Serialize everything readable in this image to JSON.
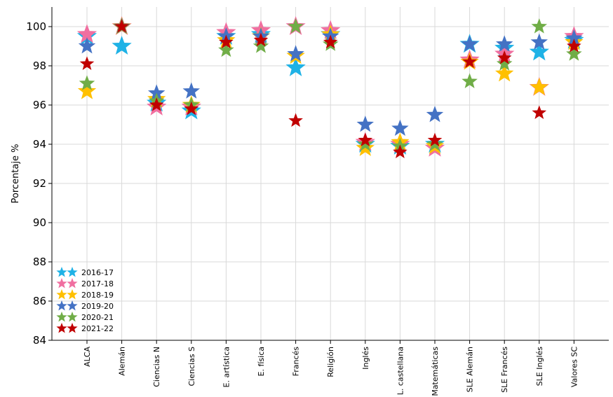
{
  "chart_data": {
    "type": "scatter",
    "ylabel": "Porcentaje %",
    "xlabel": "",
    "ylim": [
      84,
      101
    ],
    "yticks": [
      84,
      86,
      88,
      90,
      92,
      94,
      96,
      98,
      100
    ],
    "grid": true,
    "legend_position": "bottom-left",
    "categories": [
      "ALCA",
      "Alemán",
      "Ciencias N",
      "Ciencias S",
      "E. artística",
      "E. física",
      "Francés",
      "Religión",
      "Inglés",
      "L. castellana",
      "Matemáticas",
      "SLE Alemán",
      "SLE Francés",
      "SLE Inglés",
      "Valores SC"
    ],
    "series": [
      {
        "name": "2016-17",
        "color": "#1fb2e6",
        "values": [
          99.5,
          99.0,
          96.1,
          95.7,
          99.5,
          99.6,
          97.9,
          99.6,
          94.0,
          93.9,
          94.0,
          99.1,
          98.9,
          98.7,
          99.3
        ]
      },
      {
        "name": "2017-18",
        "color": "#f06fa0",
        "values": [
          99.6,
          100.0,
          95.9,
          95.9,
          99.7,
          99.8,
          100.0,
          99.8,
          94.1,
          94.0,
          93.8,
          98.3,
          98.6,
          96.9,
          99.5
        ]
      },
      {
        "name": "2018-19",
        "color": "#ffc000",
        "values": [
          96.7,
          100.0,
          96.3,
          96.0,
          99.3,
          99.5,
          98.5,
          99.6,
          93.8,
          94.1,
          93.9,
          98.2,
          97.6,
          96.9,
          99.2
        ]
      },
      {
        "name": "2019-20",
        "color": "#4472c4",
        "values": [
          99.0,
          100.0,
          96.6,
          96.7,
          99.5,
          99.5,
          98.6,
          99.5,
          95.0,
          94.8,
          95.5,
          99.1,
          99.1,
          99.2,
          99.4
        ]
      },
      {
        "name": "2020-21",
        "color": "#70ad47",
        "values": [
          97.1,
          100.0,
          96.2,
          96.0,
          98.8,
          99.0,
          100.0,
          99.1,
          94.0,
          93.9,
          94.0,
          97.2,
          98.1,
          100.0,
          98.6
        ]
      },
      {
        "name": "2021-22",
        "color": "#c00000",
        "values": [
          98.1,
          100.0,
          96.0,
          95.8,
          99.2,
          99.3,
          95.2,
          99.2,
          94.2,
          93.6,
          94.2,
          98.2,
          98.4,
          95.6,
          99.0
        ]
      }
    ]
  }
}
